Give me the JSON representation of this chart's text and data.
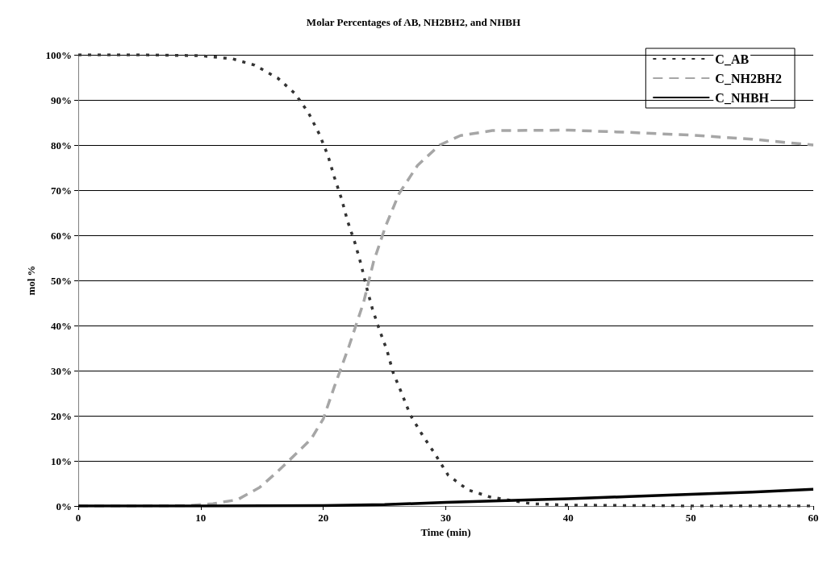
{
  "chart_data": {
    "type": "line",
    "title": "Molar Percentages of AB, NH2BH2, and NHBH",
    "xlabel": "Time (min)",
    "ylabel": "mol %",
    "xlim": [
      0,
      60
    ],
    "xticks": [
      0,
      10,
      20,
      30,
      40,
      50,
      60
    ],
    "ylim": [
      0,
      100
    ],
    "yticks": [
      {
        "value": 0,
        "label": "0%"
      },
      {
        "value": 10,
        "label": "10%"
      },
      {
        "value": 20,
        "label": "20%"
      },
      {
        "value": 30,
        "label": "30%"
      },
      {
        "value": 40,
        "label": "40%"
      },
      {
        "value": 50,
        "label": "50%"
      },
      {
        "value": 60,
        "label": "60%"
      },
      {
        "value": 70,
        "label": "70%"
      },
      {
        "value": 80,
        "label": "80%"
      },
      {
        "value": 90,
        "label": "90%"
      },
      {
        "value": 100,
        "label": "100%"
      }
    ],
    "grid": "y",
    "legend": "top right",
    "marker": "none",
    "series": [
      {
        "name": "C_AB",
        "color": "#333333",
        "line_style": "dotted",
        "x": [
          0,
          5,
          10,
          12.6,
          14.4,
          16.3,
          17.7,
          18.8,
          19.7,
          20.4,
          20.9,
          21.5,
          22.0,
          22.6,
          23.1,
          23.5,
          24.0,
          24.6,
          25.2,
          25.7,
          26.4,
          27.1,
          28.1,
          29.1,
          30.2,
          31.8,
          33.6,
          37,
          40,
          50,
          60
        ],
        "values": [
          100,
          100,
          99.8,
          99.1,
          97.7,
          94.8,
          91.4,
          87.1,
          82.3,
          77.5,
          72.9,
          68,
          63,
          58.2,
          53.4,
          48.8,
          43.8,
          38.9,
          34.5,
          29.6,
          25,
          20.2,
          15.7,
          11.6,
          6.8,
          3.6,
          2,
          0.5,
          0.2,
          0,
          0
        ]
      },
      {
        "name": "C_NH2BH2",
        "color": "#a6a6a6",
        "line_style": "dashed",
        "x": [
          0,
          5,
          9,
          11,
          13,
          14.8,
          16.3,
          19,
          20,
          20.9,
          22.1,
          23.3,
          24.1,
          25.1,
          26.2,
          27.7,
          29.5,
          31.2,
          33.8,
          40,
          45,
          50,
          55,
          60
        ],
        "values": [
          0,
          0,
          0.1,
          0.5,
          1.4,
          4.1,
          7.7,
          14.8,
          19.3,
          26.4,
          35.4,
          45.2,
          54.1,
          62.1,
          69.3,
          75.5,
          80,
          82.1,
          83.2,
          83.3,
          82.8,
          82.2,
          81.3,
          80
        ]
      },
      {
        "name": "C_NHBH",
        "color": "#000000",
        "line_style": "solid",
        "x": [
          0,
          10,
          20,
          25,
          30,
          35,
          40,
          45,
          50,
          55,
          60
        ],
        "values": [
          0,
          0,
          0.1,
          0.3,
          0.8,
          1.2,
          1.6,
          2.1,
          2.6,
          3.1,
          3.7
        ]
      }
    ]
  }
}
